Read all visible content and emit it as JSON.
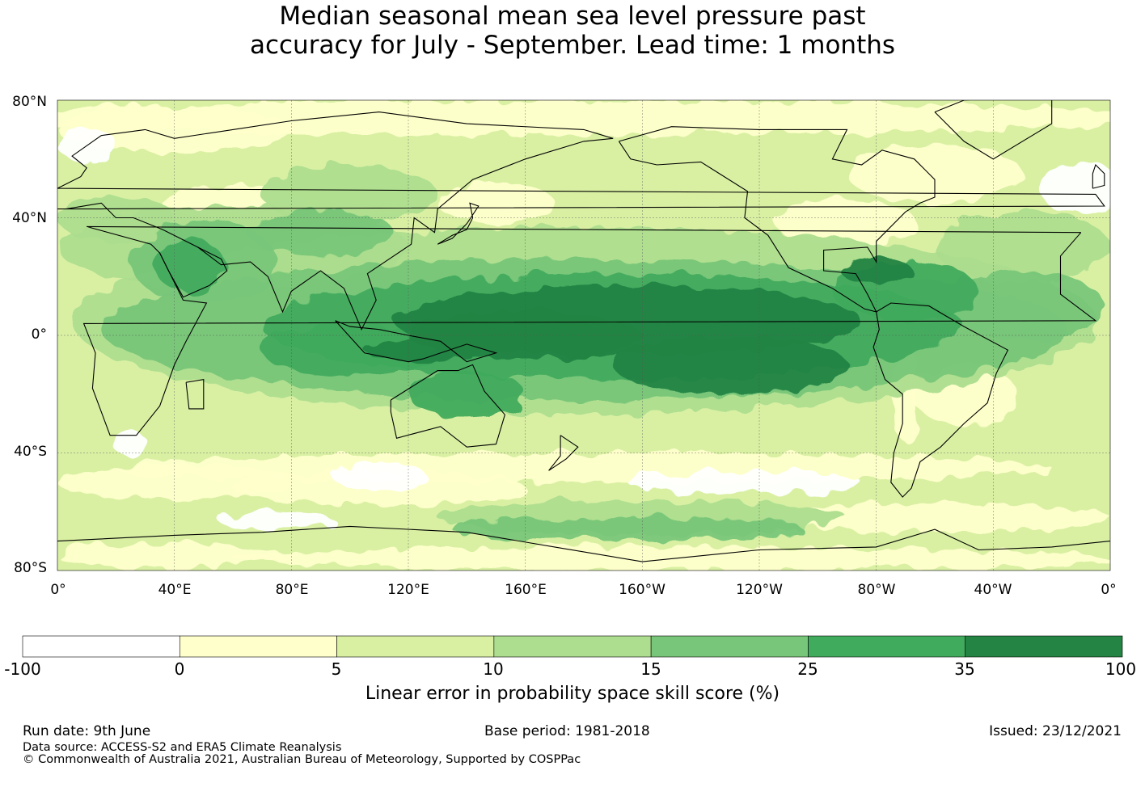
{
  "title": {
    "line1": "Median seasonal mean sea level pressure past",
    "line2": "accuracy for July - September. Lead time: 1 months"
  },
  "map": {
    "lat_labels": [
      "80°N",
      "40°N",
      "0°",
      "40°S",
      "80°S"
    ],
    "lon_labels": [
      "0°",
      "40°E",
      "80°E",
      "120°E",
      "160°E",
      "160°W",
      "120°W",
      "80°W",
      "40°W",
      "0°"
    ],
    "colors": {
      "ocean_base": "#d4eca0",
      "level_0": "#ffffcc",
      "level_5": "#d9f0a3",
      "level_10": "#addd8e",
      "level_15": "#78c679",
      "level_25": "#41ab5d",
      "level_35": "#238443",
      "negative": "#ffffff",
      "coast": "#000000"
    }
  },
  "colorbar": {
    "ticks": [
      "-100",
      "0",
      "5",
      "10",
      "15",
      "25",
      "35",
      "100"
    ],
    "colors": [
      "#ffffff",
      "#ffffcc",
      "#d9f0a3",
      "#addd8e",
      "#78c679",
      "#41ab5d",
      "#238443"
    ],
    "title": "Linear error in probability space skill score (%)"
  },
  "footer": {
    "run_date": "Run date: 9th June",
    "base_period": "Base period: 1981-2018",
    "issued": "Issued: 23/12/2021",
    "data_source": "Data source: ACCESS-S2 and ERA5 Climate Reanalysis",
    "copyright": "© Commonwealth of Australia 2021, Australian Bureau of Meteorology, Supported by COSPPac"
  }
}
